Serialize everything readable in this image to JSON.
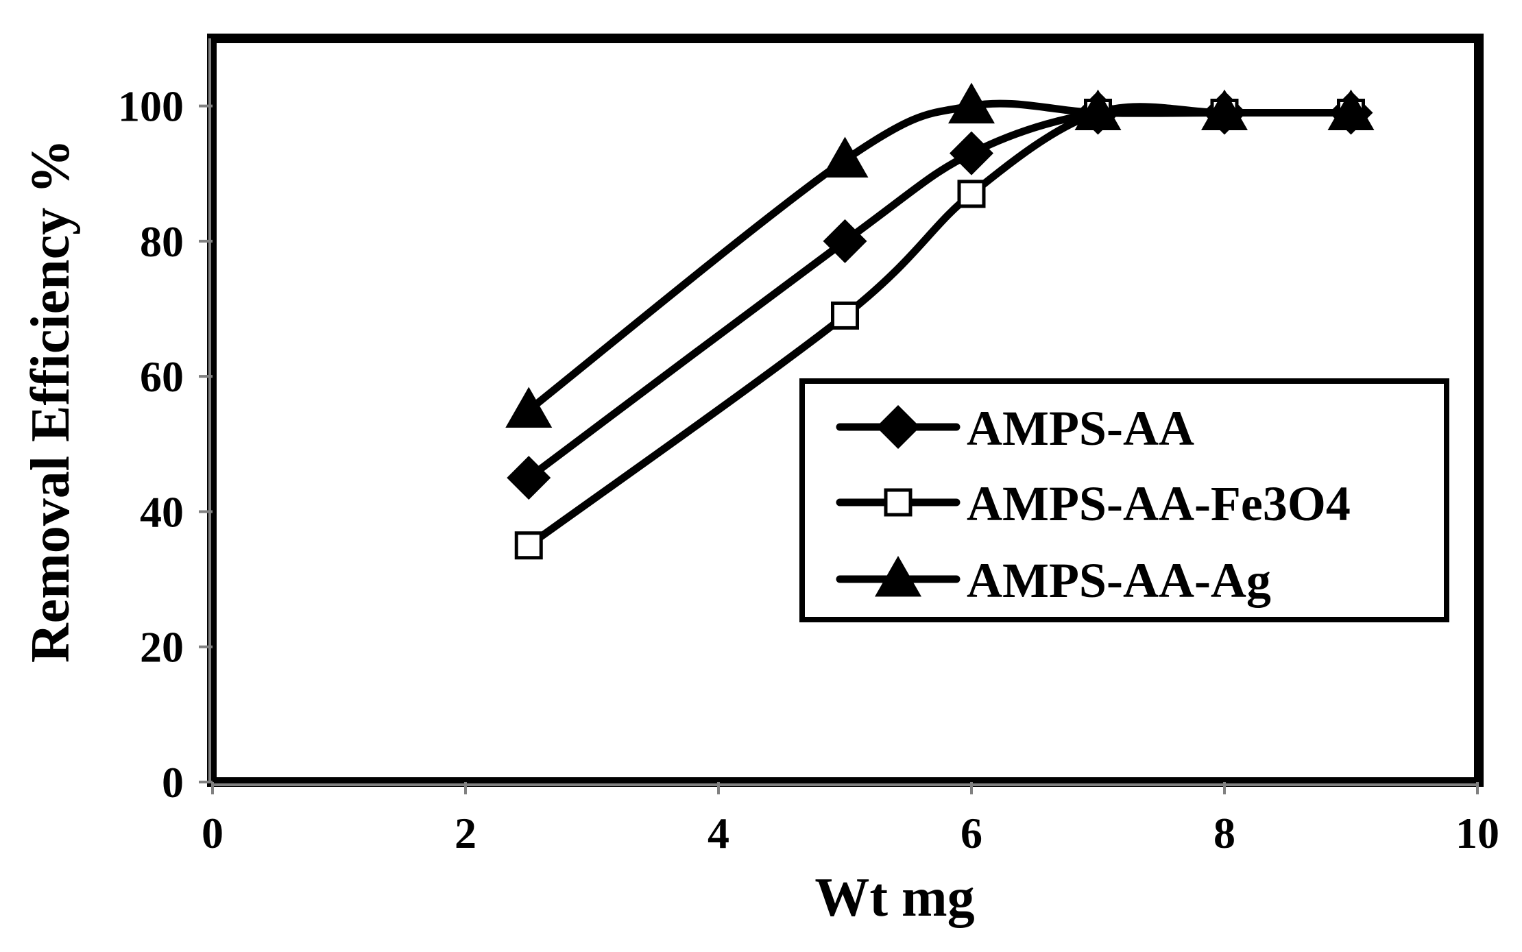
{
  "chart_data": {
    "type": "line",
    "xlabel": "Wt mg",
    "ylabel": "Removal Efficiency %",
    "xlim": [
      0,
      10
    ],
    "ylim": [
      0,
      110
    ],
    "x_ticks": [
      0,
      2,
      4,
      6,
      8,
      10
    ],
    "y_ticks": [
      0,
      20,
      40,
      60,
      80,
      100
    ],
    "x_tick_labels": [
      "0",
      "2",
      "4",
      "6",
      "8",
      "10"
    ],
    "y_tick_labels": [
      "0",
      "20",
      "40",
      "60",
      "80",
      "100"
    ],
    "grid": false,
    "smooth_lines": true,
    "legend_position": "center-right",
    "series": [
      {
        "name": "AMPS-AA",
        "marker": "diamond",
        "x": [
          2.5,
          5,
          6,
          7,
          8,
          9
        ],
        "y": [
          45,
          80,
          93,
          99,
          99,
          99
        ]
      },
      {
        "name": "AMPS-AA-Fe3O4",
        "marker": "square-open",
        "x": [
          2.5,
          5,
          6,
          7,
          8,
          9
        ],
        "y": [
          35,
          69,
          87,
          99,
          99,
          99
        ]
      },
      {
        "name": "AMPS-AA-Ag",
        "marker": "triangle",
        "x": [
          2.5,
          5,
          6,
          7,
          8,
          9
        ],
        "y": [
          55,
          92,
          100,
          99,
          99,
          99
        ]
      }
    ],
    "colors": {
      "line": "#000000",
      "background": "#ffffff",
      "frame": "#000000",
      "axis": "#808080"
    }
  }
}
